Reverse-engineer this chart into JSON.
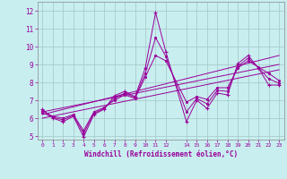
{
  "xlabel": "Windchill (Refroidissement éolien,°C)",
  "background_color": "#c8eef0",
  "grid_color": "#aacccc",
  "line_color": "#990099",
  "xlim": [
    -0.5,
    23.5
  ],
  "ylim": [
    4.8,
    12.5
  ],
  "xticks": [
    0,
    1,
    2,
    3,
    4,
    5,
    6,
    7,
    8,
    9,
    10,
    11,
    12,
    14,
    15,
    16,
    17,
    18,
    19,
    20,
    21,
    22,
    23
  ],
  "yticks": [
    5,
    6,
    7,
    8,
    9,
    10,
    11,
    12
  ],
  "hours": [
    0,
    1,
    2,
    3,
    4,
    5,
    6,
    7,
    8,
    9,
    10,
    11,
    12,
    14,
    15,
    16,
    17,
    18,
    19,
    20,
    21,
    22,
    23
  ],
  "windchill": [
    6.5,
    6.0,
    5.8,
    6.1,
    4.95,
    6.2,
    6.5,
    7.25,
    7.5,
    7.2,
    8.8,
    11.9,
    9.7,
    5.8,
    7.0,
    6.55,
    7.4,
    7.3,
    9.05,
    9.5,
    8.8,
    7.85,
    7.85
  ],
  "series2": [
    6.4,
    6.1,
    6.0,
    6.2,
    5.3,
    6.35,
    6.6,
    7.0,
    7.3,
    7.1,
    8.3,
    9.5,
    9.2,
    6.9,
    7.2,
    7.05,
    7.7,
    7.7,
    8.8,
    9.2,
    8.85,
    8.5,
    8.1
  ],
  "series3": [
    6.3,
    6.05,
    5.9,
    6.15,
    5.15,
    6.27,
    6.55,
    7.1,
    7.4,
    7.15,
    8.5,
    10.5,
    9.45,
    6.35,
    7.1,
    6.8,
    7.55,
    7.5,
    8.9,
    9.35,
    8.82,
    8.2,
    7.95
  ],
  "trend_x": [
    0,
    23
  ],
  "trend1_y": [
    6.2,
    9.5
  ],
  "trend2_y": [
    6.0,
    8.7
  ],
  "trend3_y": [
    6.35,
    9.0
  ]
}
